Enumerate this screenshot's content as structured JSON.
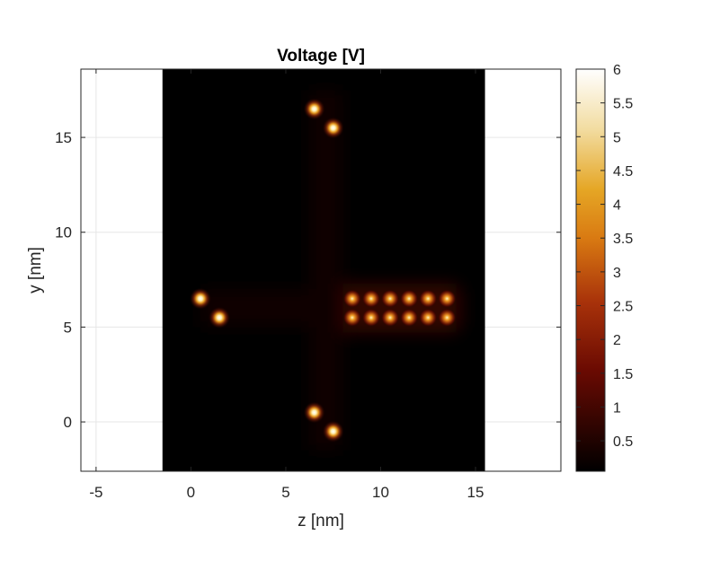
{
  "chart_data": {
    "type": "heatmap",
    "title": "Voltage [V]",
    "xlabel": "z [nm]",
    "ylabel": "y [nm]",
    "xlim": [
      -5.8,
      19.5
    ],
    "ylim": [
      -2.6,
      18.6
    ],
    "x_ticks": [
      -5,
      0,
      5,
      10,
      15
    ],
    "y_ticks": [
      0,
      5,
      10,
      15
    ],
    "grid": true,
    "colormap": "afmhot",
    "colorbar": {
      "range": [
        0.05,
        6.0
      ],
      "ticks": [
        "0.5",
        "1",
        "1.5",
        "2",
        "2.5",
        "3",
        "3.5",
        "4",
        "4.5",
        "5",
        "5.5",
        "6"
      ]
    },
    "data_extent": {
      "z": [
        -1.5,
        15.5
      ],
      "y": [
        -2.6,
        18.6
      ]
    },
    "background_value": 0.05,
    "hot_spots": [
      {
        "z": 6.5,
        "y": 16.5,
        "value": 6.0
      },
      {
        "z": 7.5,
        "y": 15.5,
        "value": 6.0
      },
      {
        "z": 0.5,
        "y": 6.5,
        "value": 6.0
      },
      {
        "z": 1.5,
        "y": 5.5,
        "value": 6.0
      },
      {
        "z": 6.5,
        "y": 0.5,
        "value": 6.0
      },
      {
        "z": 7.5,
        "y": -0.5,
        "value": 6.0
      },
      {
        "z": 8.5,
        "y": 6.5,
        "value": 3.0
      },
      {
        "z": 9.5,
        "y": 6.5,
        "value": 3.0
      },
      {
        "z": 10.5,
        "y": 6.5,
        "value": 3.0
      },
      {
        "z": 11.5,
        "y": 6.5,
        "value": 3.0
      },
      {
        "z": 12.5,
        "y": 6.5,
        "value": 3.0
      },
      {
        "z": 13.5,
        "y": 6.5,
        "value": 3.0
      },
      {
        "z": 8.5,
        "y": 5.5,
        "value": 3.0
      },
      {
        "z": 9.5,
        "y": 5.5,
        "value": 3.0
      },
      {
        "z": 10.5,
        "y": 5.5,
        "value": 3.0
      },
      {
        "z": 11.5,
        "y": 5.5,
        "value": 3.0
      },
      {
        "z": 12.5,
        "y": 5.5,
        "value": 3.0
      },
      {
        "z": 13.5,
        "y": 5.5,
        "value": 3.0
      }
    ]
  }
}
